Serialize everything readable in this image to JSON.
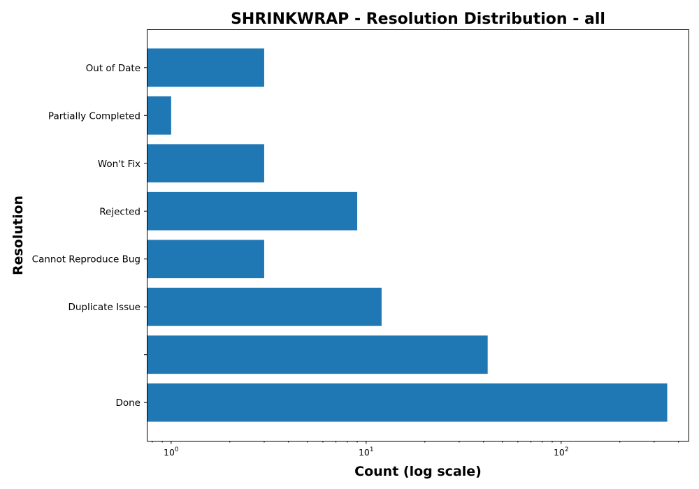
{
  "chart_data": {
    "type": "bar",
    "orientation": "horizontal",
    "title": "SHRINKWRAP - Resolution Distribution - all",
    "xlabel": "Count (log scale)",
    "ylabel": "Resolution",
    "x_scale": "log",
    "xlim": [
      0.75,
      450
    ],
    "categories": [
      "Done",
      "",
      "Duplicate Issue",
      "Cannot Reproduce Bug",
      "Rejected",
      "Won't Fix",
      "Partially Completed",
      "Out of Date"
    ],
    "values": [
      350,
      42,
      12,
      3,
      9,
      3,
      1,
      3
    ],
    "x_ticks": [
      {
        "base": "10",
        "exp": "0",
        "value": 1
      },
      {
        "base": "10",
        "exp": "1",
        "value": 10
      },
      {
        "base": "10",
        "exp": "2",
        "value": 100
      }
    ],
    "bar_color": "#1f77b4",
    "grid": false,
    "legend": "none"
  }
}
